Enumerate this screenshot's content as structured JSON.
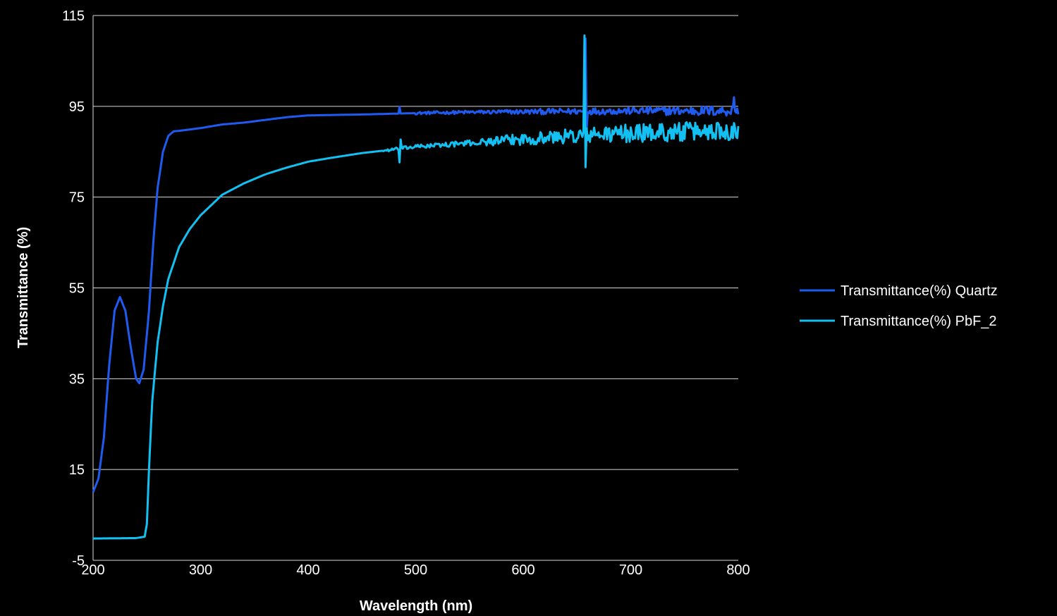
{
  "chart_data": {
    "type": "line",
    "title": "",
    "xlabel": "Wavelength (nm)",
    "ylabel": "Transmittance (%)",
    "xlim": [
      200,
      800
    ],
    "ylim": [
      -5,
      115
    ],
    "xticks": [
      200,
      300,
      400,
      500,
      600,
      700,
      800
    ],
    "yticks": [
      -5,
      15,
      35,
      55,
      75,
      95,
      115
    ],
    "grid": "horizontal",
    "legend_position": "right",
    "series": [
      {
        "name": "Transmittance(%) Quartz",
        "color": "#1f5bf0",
        "noise": [
          [
            500,
            0.3
          ],
          [
            560,
            0.4
          ],
          [
            620,
            0.6
          ],
          [
            700,
            0.8
          ],
          [
            800,
            1.2
          ]
        ],
        "spikes": [
          [
            485,
            1.5
          ],
          [
            658,
            16
          ],
          [
            659,
            -4
          ],
          [
            796,
            3
          ]
        ],
        "points": [
          [
            200,
            10
          ],
          [
            205,
            13
          ],
          [
            210,
            22
          ],
          [
            215,
            38
          ],
          [
            220,
            50
          ],
          [
            225,
            53
          ],
          [
            230,
            50
          ],
          [
            235,
            42
          ],
          [
            240,
            35
          ],
          [
            243,
            34
          ],
          [
            247,
            37
          ],
          [
            252,
            50
          ],
          [
            256,
            65
          ],
          [
            260,
            77
          ],
          [
            265,
            85
          ],
          [
            270,
            88.5
          ],
          [
            275,
            89.5
          ],
          [
            280,
            89.6
          ],
          [
            300,
            90.2
          ],
          [
            320,
            91
          ],
          [
            340,
            91.4
          ],
          [
            360,
            92
          ],
          [
            380,
            92.6
          ],
          [
            400,
            93
          ],
          [
            450,
            93.2
          ],
          [
            500,
            93.5
          ],
          [
            550,
            93.7
          ],
          [
            600,
            93.8
          ],
          [
            650,
            93.9
          ],
          [
            700,
            94
          ],
          [
            750,
            94
          ],
          [
            800,
            94
          ]
        ]
      },
      {
        "name": "Transmittance(%) PbF_2",
        "color": "#12c0f2",
        "noise": [
          [
            470,
            0.3
          ],
          [
            550,
            0.6
          ],
          [
            600,
            1.3
          ],
          [
            650,
            1.7
          ],
          [
            700,
            2.0
          ],
          [
            800,
            2.2
          ]
        ],
        "spikes": [
          [
            485,
            -3
          ],
          [
            486,
            2
          ],
          [
            657,
            22
          ],
          [
            658,
            -7
          ]
        ],
        "points": [
          [
            200,
            -0.2
          ],
          [
            240,
            -0.1
          ],
          [
            248,
            0.2
          ],
          [
            250,
            3
          ],
          [
            252,
            15
          ],
          [
            255,
            30
          ],
          [
            260,
            43
          ],
          [
            265,
            51
          ],
          [
            270,
            57
          ],
          [
            280,
            64
          ],
          [
            290,
            68
          ],
          [
            300,
            71
          ],
          [
            320,
            75.5
          ],
          [
            340,
            78
          ],
          [
            360,
            80
          ],
          [
            380,
            81.5
          ],
          [
            400,
            82.8
          ],
          [
            420,
            83.6
          ],
          [
            450,
            84.7
          ],
          [
            480,
            85.5
          ],
          [
            500,
            86.1
          ],
          [
            550,
            86.9
          ],
          [
            600,
            87.8
          ],
          [
            650,
            88.5
          ],
          [
            700,
            89.1
          ],
          [
            750,
            89.4
          ],
          [
            800,
            89.8
          ]
        ]
      }
    ]
  }
}
